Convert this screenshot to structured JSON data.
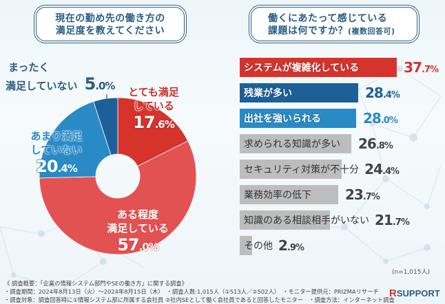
{
  "left": {
    "title_line1": "現在の勤め先の働き方の",
    "title_line2": "満足度を教えてください"
  },
  "right": {
    "title_line1": "働くにあたって感じている",
    "title_line2_main": "課題は何ですか？",
    "title_line2_note": "(複数回答可)",
    "n_note": "(n=1,015人)"
  },
  "chart_data": [
    {
      "type": "pie",
      "title": "現在の勤め先の働き方の満足度を教えてください",
      "donut": true,
      "slices": [
        {
          "label_l1": "とても満足",
          "label_l2": "している",
          "value": 17.6,
          "int": "17",
          "dec": ".6",
          "color": "#d6332d",
          "text_color": "#c9302a"
        },
        {
          "label_l1": "ある程度",
          "label_l2": "満足している",
          "value": 57.0,
          "int": "57",
          "dec": ".0",
          "color": "#e35252",
          "text_color": "#ffffff"
        },
        {
          "label_l1": "あまり満足",
          "label_l2": "していない",
          "value": 20.4,
          "int": "20",
          "dec": ".4",
          "color": "#2a8ac6",
          "text_color": "#2a8ac6"
        },
        {
          "label_l1": "まったく",
          "label_l2": "満足していない",
          "value": 5.0,
          "int": "5",
          "dec": ".0",
          "color": "#1d5f99",
          "text_color": "#2a5d85"
        }
      ]
    },
    {
      "type": "bar",
      "orientation": "horizontal",
      "title": "働くにあたって感じている課題は何ですか？(複数回答可)",
      "categories": [
        "システムが複雑化している",
        "残業が多い",
        "出社を強いられる",
        "求められる知識が多い",
        "セキュリティ対策が不十分",
        "業務効率の低下",
        "知識のある相談相手がいない",
        "その他"
      ],
      "values": [
        37.7,
        28.4,
        28.0,
        26.8,
        24.4,
        23.7,
        21.7,
        2.9
      ],
      "value_int": [
        "37",
        "28",
        "28",
        "26",
        "24",
        "23",
        "21",
        "2"
      ],
      "value_dec": [
        ".7",
        ".4",
        ".0",
        ".8",
        ".4",
        ".7",
        ".7",
        ".9"
      ],
      "colors": [
        "#d6332d",
        "#1d5f99",
        "#2a8ac6",
        "#bdbdbd",
        "#bdbdbd",
        "#bdbdbd",
        "#bdbdbd",
        "#bdbdbd"
      ],
      "label_colors": [
        "#ffffff",
        "#ffffff",
        "#ffffff",
        "#333333",
        "#333333",
        "#333333",
        "#333333",
        "#333333"
      ],
      "value_colors": [
        "#d6332d",
        "#1d5f99",
        "#2a8ac6",
        "#444444",
        "#444444",
        "#444444",
        "#444444",
        "#444444"
      ],
      "percent_sign": "%",
      "n": "n=1,015人"
    }
  ],
  "footer": {
    "line1": "《 調査概要：「企業の情報システム部門やSEの働き方」に関する調査》",
    "line2": "・調査期間：2024年8月13日（火）～2024年8月15日（木）　・調査人数:1,015人（①513人／②502人）　・モニター提供元：PRIZMAリサーチ",
    "line3": "・調査対象：調査回答時に①情報システム部に所属する会社員 ②社内SEとして働く会社員であると回答したモニター　・調査方法：インターネット調査"
  },
  "logo": {
    "r": "R",
    "text": "SUPPORT"
  }
}
